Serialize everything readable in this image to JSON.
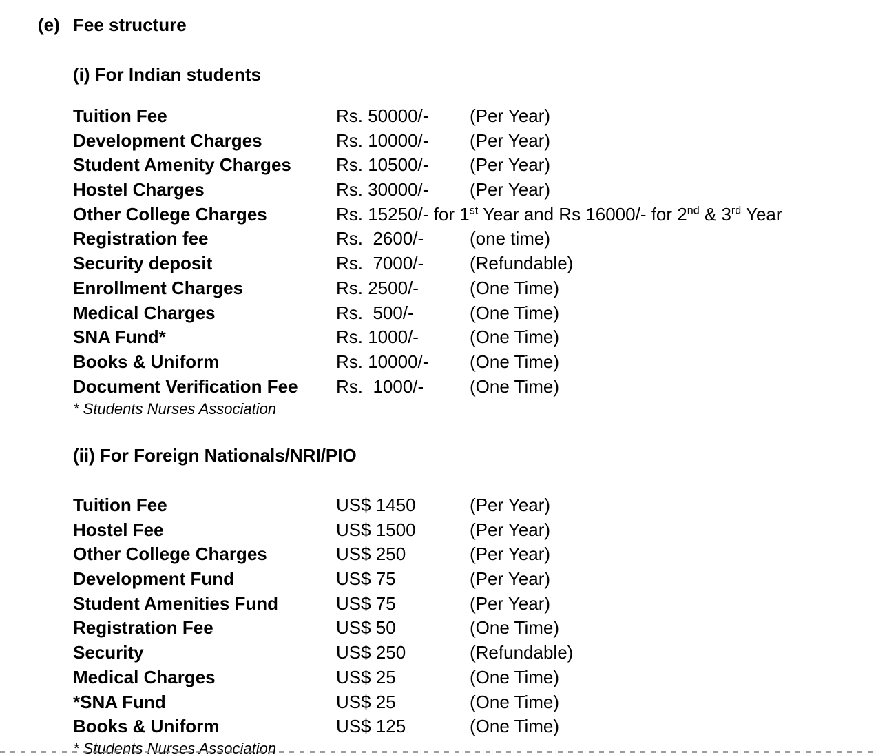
{
  "heading": {
    "marker": "(e)",
    "text": "Fee structure"
  },
  "sections": [
    {
      "heading": "(i) For Indian students",
      "rows": [
        {
          "label": "Tuition Fee",
          "amount": "Rs. 50000/-",
          "note": "(Per Year)"
        },
        {
          "label": "Development Charges",
          "amount": "Rs. 10000/-",
          "note": "(Per Year)"
        },
        {
          "label": "Student Amenity Charges",
          "amount": "Rs. 10500/-",
          "note": "(Per Year)"
        },
        {
          "label": "Hostel Charges",
          "amount": "Rs. 30000/-",
          "note": "(Per Year)"
        },
        {
          "label": "Other College Charges",
          "amount": "Rs. 15250/- for 1^{st} Year and Rs 16000/- for 2^{nd} & 3^{rd} Year",
          "note": ""
        },
        {
          "label": "Registration fee",
          "amount": "Rs.  2600/-",
          "note": "(one time)"
        },
        {
          "label": "Security deposit",
          "amount": "Rs.  7000/-",
          "note": "(Refundable)"
        },
        {
          "label": "Enrollment Charges",
          "amount": "Rs. 2500/-",
          "note": "(One Time)"
        },
        {
          "label": "Medical Charges",
          "amount": "Rs.  500/-",
          "note": "(One Time)"
        },
        {
          "label": "SNA Fund*",
          "amount": "Rs. 1000/-",
          "note": "(One Time)"
        },
        {
          "label": "Books & Uniform",
          "amount": "Rs. 10000/-",
          "note": "(One Time)"
        },
        {
          "label": "Document Verification Fee",
          "amount": "Rs.  1000/-",
          "note": "(One Time)"
        }
      ],
      "footnote": "* Students Nurses Association"
    },
    {
      "heading": "(ii) For Foreign Nationals/NRI/PIO",
      "rows": [
        {
          "label": "Tuition Fee",
          "amount": "US$ 1450",
          "note": "(Per Year)"
        },
        {
          "label": "Hostel Fee",
          "amount": "US$ 1500",
          "note": "(Per Year)"
        },
        {
          "label": "Other College Charges",
          "amount": "US$ 250",
          "note": "(Per Year)"
        },
        {
          "label": "Development Fund",
          "amount": "US$ 75",
          "note": "(Per Year)"
        },
        {
          "label": "Student Amenities Fund",
          "amount": "US$ 75",
          "note": "(Per Year)"
        },
        {
          "label": "Registration Fee",
          "amount": "US$ 50",
          "note": "(One Time)"
        },
        {
          "label": "Security",
          "amount": "US$ 250",
          "note": "(Refundable)"
        },
        {
          "label": "Medical Charges",
          "amount": "US$ 25",
          "note": "(One Time)"
        },
        {
          "label": "*SNA Fund",
          "amount": "US$ 25",
          "note": "(One Time)"
        },
        {
          "label": "Books & Uniform",
          "amount": "US$ 125",
          "note": "(One Time)"
        }
      ],
      "footnote": "* Students Nurses Association"
    }
  ],
  "divider": {
    "style": "dashed",
    "color": "#8a8a8a"
  }
}
